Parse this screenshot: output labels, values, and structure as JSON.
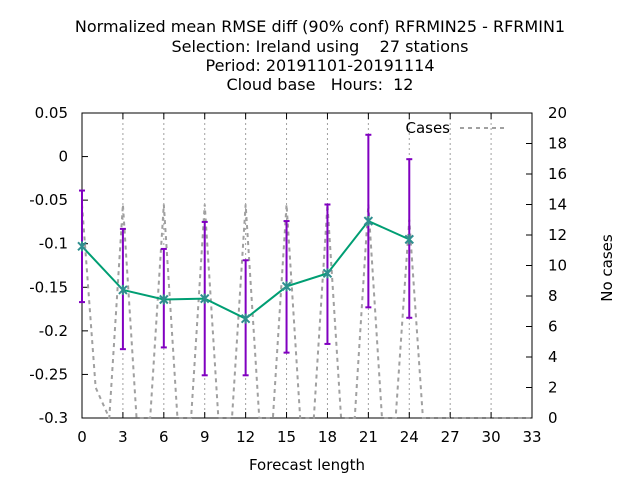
{
  "chart_data": {
    "type": "line",
    "title_lines": [
      "Normalized mean RMSE diff (90% conf) RFRMIN25 - RFRMIN1",
      "Selection: Ireland using    27 stations",
      "Period: 20191101-20191114",
      "Cloud base   Hours:  12"
    ],
    "xlabel": "Forecast length",
    "ylabel": "",
    "y2label": "No cases",
    "xlim": [
      0,
      33
    ],
    "ylim": [
      -0.3,
      0.05
    ],
    "y2lim": [
      0,
      20
    ],
    "xticks": [
      "0",
      "3",
      "6",
      "9",
      "12",
      "15",
      "18",
      "21",
      "24",
      "27",
      "30",
      "33"
    ],
    "yticks": [
      "0.05",
      "0",
      "-0.05",
      "-0.1",
      "-0.15",
      "-0.2",
      "-0.25",
      "-0.3"
    ],
    "y2ticks": [
      "20",
      "18",
      "16",
      "14",
      "12",
      "10",
      "8",
      "6",
      "4",
      "2",
      "0"
    ],
    "grid": true,
    "series": [
      {
        "name": "RMSE diff",
        "axis": "y",
        "color": "#009e73",
        "marker_color": "#2f8f8f",
        "x": [
          0,
          3,
          6,
          9,
          12,
          15,
          18,
          21,
          24
        ],
        "values": [
          -0.103,
          -0.153,
          -0.164,
          -0.163,
          -0.186,
          -0.149,
          -0.134,
          -0.074,
          -0.095
        ],
        "err_low": [
          -0.167,
          -0.221,
          -0.219,
          -0.251,
          -0.251,
          -0.225,
          -0.215,
          -0.173,
          -0.185
        ],
        "err_high": [
          -0.039,
          -0.083,
          -0.106,
          -0.075,
          -0.119,
          -0.074,
          -0.055,
          0.025,
          -0.003
        ],
        "error_color": "#8000c0"
      },
      {
        "name": "Cases",
        "axis": "y2",
        "color": "#a0a0a0",
        "dashed": true,
        "x": [
          0,
          1,
          2,
          3,
          4,
          5,
          6,
          7,
          8,
          9,
          10,
          11,
          12,
          13,
          14,
          15,
          16,
          17,
          18,
          19,
          20,
          21,
          22,
          23,
          24,
          25,
          26,
          27,
          28,
          29,
          30,
          31,
          32,
          33
        ],
        "values": [
          14,
          2,
          0,
          14,
          0,
          0,
          14,
          0,
          0,
          14,
          0,
          0,
          14,
          0,
          0,
          14,
          0,
          0,
          14,
          0,
          0,
          14,
          0,
          0,
          13,
          0,
          0,
          0,
          0,
          0,
          0,
          0,
          0,
          0
        ]
      }
    ],
    "legend": {
      "label": "Cases",
      "position": "top-right"
    }
  }
}
